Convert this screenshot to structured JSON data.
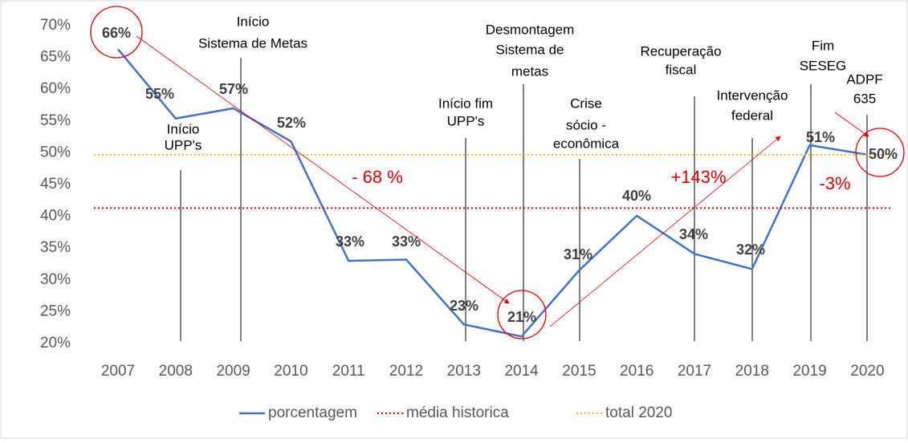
{
  "chart_data": {
    "type": "line",
    "categories": [
      "2007",
      "2008",
      "2009",
      "2010",
      "2011",
      "2012",
      "2013",
      "2014",
      "2015",
      "2016",
      "2017",
      "2018",
      "2019",
      "2020"
    ],
    "series": [
      {
        "name": "porcentagem",
        "color": "#4472c4",
        "style": "solid",
        "values": [
          66.3,
          55.4,
          57,
          51.8,
          33,
          33.2,
          23,
          21.1,
          31.5,
          40.1,
          34.1,
          31.7,
          51.2,
          49.7
        ],
        "value_labels": [
          "66%",
          "55%",
          "57%",
          "52%",
          "33%",
          "33%",
          "23%",
          "21%",
          "31%",
          "40%",
          "34%",
          "32%",
          "51%",
          "50%"
        ]
      },
      {
        "name": "média historica",
        "color": "#e00000",
        "style": "dotted",
        "values": [
          41.3,
          41.3,
          41.3,
          41.3,
          41.3,
          41.3,
          41.3,
          41.3,
          41.3,
          41.3,
          41.3,
          41.3,
          41.3,
          41.3
        ]
      },
      {
        "name": "total 2020",
        "color": "#f2b233",
        "style": "dotted",
        "values": [
          49.7,
          49.7,
          49.7,
          49.7,
          49.7,
          49.7,
          49.7,
          49.7,
          49.7,
          49.7,
          49.7,
          49.7,
          49.7,
          49.7
        ]
      }
    ],
    "ylim": [
      20,
      70
    ],
    "yticks": [
      {
        "value": 20,
        "label": "20%"
      },
      {
        "value": 25,
        "label": "25%"
      },
      {
        "value": 30,
        "label": "30%"
      },
      {
        "value": 35,
        "label": "35%"
      },
      {
        "value": 40,
        "label": "40%"
      },
      {
        "value": 45,
        "label": "45%"
      },
      {
        "value": 50,
        "label": "50%"
      },
      {
        "value": 55,
        "label": "55%"
      },
      {
        "value": 60,
        "label": "60%"
      },
      {
        "value": 65,
        "label": "65%"
      },
      {
        "value": 70,
        "label": "70%"
      }
    ],
    "grid": false,
    "legend": "bottom",
    "annotations": [
      {
        "lines": [
          "Início",
          "UPP's"
        ]
      },
      {
        "lines": [
          "Início",
          "Sistema de Metas"
        ]
      },
      {
        "lines": [
          "Início fim",
          "UPP's"
        ]
      },
      {
        "lines": [
          "Desmontagem",
          "Sistema de",
          "metas"
        ]
      },
      {
        "lines": [
          "Crise",
          "sócio -",
          "econômica"
        ]
      },
      {
        "lines": [
          "Recuperação",
          "fiscal"
        ]
      },
      {
        "lines": [
          "Intervenção",
          "federal"
        ]
      },
      {
        "lines": [
          "Fim",
          "SESEG"
        ]
      },
      {
        "lines": [
          "ADPF",
          "635"
        ]
      }
    ],
    "change_labels": [
      "- 68 %",
      "+143%",
      "-3%"
    ]
  }
}
